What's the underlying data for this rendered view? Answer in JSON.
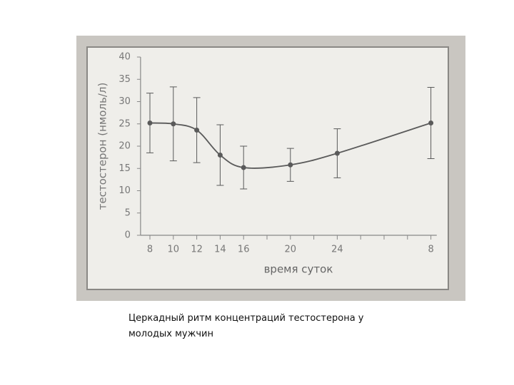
{
  "chart_data": {
    "type": "line-errorbar",
    "ylabel": "тестостерон (нмоль/л)",
    "xlabel": "время суток",
    "x": [
      8,
      10,
      12,
      14,
      16,
      20,
      24,
      32
    ],
    "values": [
      25.2,
      25,
      23.6,
      18,
      15.2,
      15.8,
      18.4,
      25.2
    ],
    "errors": [
      6.7,
      8.3,
      7.3,
      6.8,
      4.8,
      3.7,
      5.5,
      8
    ],
    "color": "#5a5a5a",
    "xlim": [
      7.2,
      32.5
    ],
    "xticks": [
      8,
      10,
      12,
      14,
      16,
      20,
      24,
      {
        "value": 32,
        "label": "8"
      }
    ],
    "minor_xticks": [
      18,
      22,
      26,
      28,
      30
    ],
    "ylim": [
      0,
      40
    ],
    "yticks": [
      0,
      5,
      10,
      15,
      20,
      25,
      30,
      35,
      40
    ]
  },
  "caption": "Церкадный ритм концентраций тестостерона у молодых мужчин"
}
